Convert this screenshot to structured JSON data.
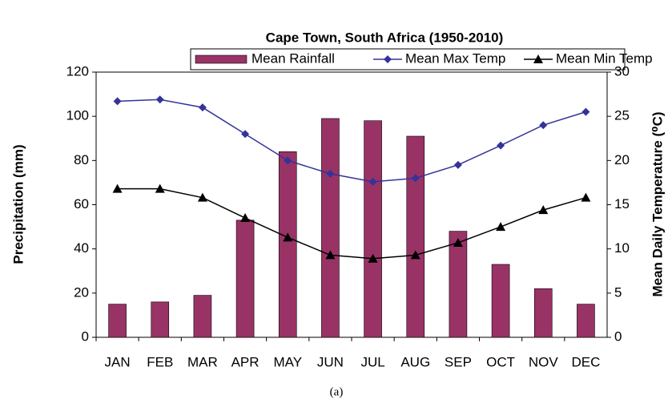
{
  "chart_data": {
    "type": "bar-line",
    "title": "Cape Town, South Africa (1950-2010)",
    "y_label": "Precipitation (mm)",
    "y2_label": "Mean Daily Temperature (⁰C)",
    "caption": "(a)",
    "categories": [
      "JAN",
      "FEB",
      "MAR",
      "APR",
      "MAY",
      "JUN",
      "JUL",
      "AUG",
      "SEP",
      "OCT",
      "NOV",
      "DEC"
    ],
    "ylim": [
      0,
      120
    ],
    "yticks": [
      0,
      20,
      40,
      60,
      80,
      100,
      120
    ],
    "y2lim": [
      0,
      30
    ],
    "y2ticks": [
      0,
      5,
      10,
      15,
      20,
      25,
      30
    ],
    "series": [
      {
        "name": "Mean Rainfall",
        "type": "bar",
        "color": "#993366",
        "values": [
          15,
          16,
          19,
          53,
          84,
          99,
          98,
          91,
          48,
          33,
          22,
          15
        ]
      },
      {
        "name": "Mean Max Temp",
        "type": "line",
        "marker": "diamond",
        "axis": "y2",
        "color": "#333399",
        "values": [
          26.7,
          26.9,
          26.0,
          23.0,
          20.0,
          18.5,
          17.6,
          18.0,
          19.5,
          21.7,
          24.0,
          25.5
        ]
      },
      {
        "name": "Mean Min Temp",
        "type": "line",
        "marker": "triangle",
        "axis": "y2",
        "color": "#000000",
        "values": [
          16.8,
          16.8,
          15.8,
          13.5,
          11.3,
          9.3,
          8.9,
          9.3,
          10.7,
          12.5,
          14.4,
          15.8
        ]
      }
    ]
  }
}
